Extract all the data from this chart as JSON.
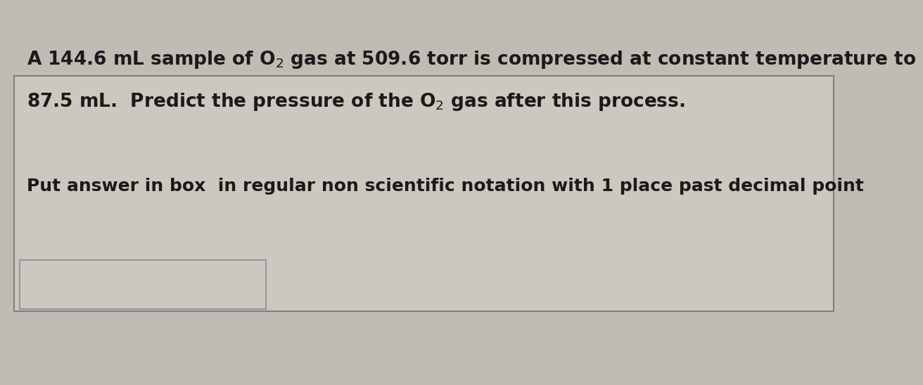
{
  "bg_color": "#c0bcb4",
  "inner_bg": "#ccc8c0",
  "box_bg": "#ccc8c0",
  "border_color": "#808080",
  "answer_box_border": "#9098a0",
  "text_color": "#1a1a1a",
  "font_size_main": 19,
  "font_size_sub": 13,
  "font_size_line3": 18,
  "line1a": "A 144.6 mL sample of O",
  "line1b": "2",
  "line1c": " gas at 509.6 torr is compressed at constant temperature to",
  "line2a": "87.5 mL.  Predict the pressure of the O",
  "line2b": "2",
  "line2c": " gas after this process.",
  "line3": "Put answer in box  in regular non scientific notation with 1 place past decimal point"
}
